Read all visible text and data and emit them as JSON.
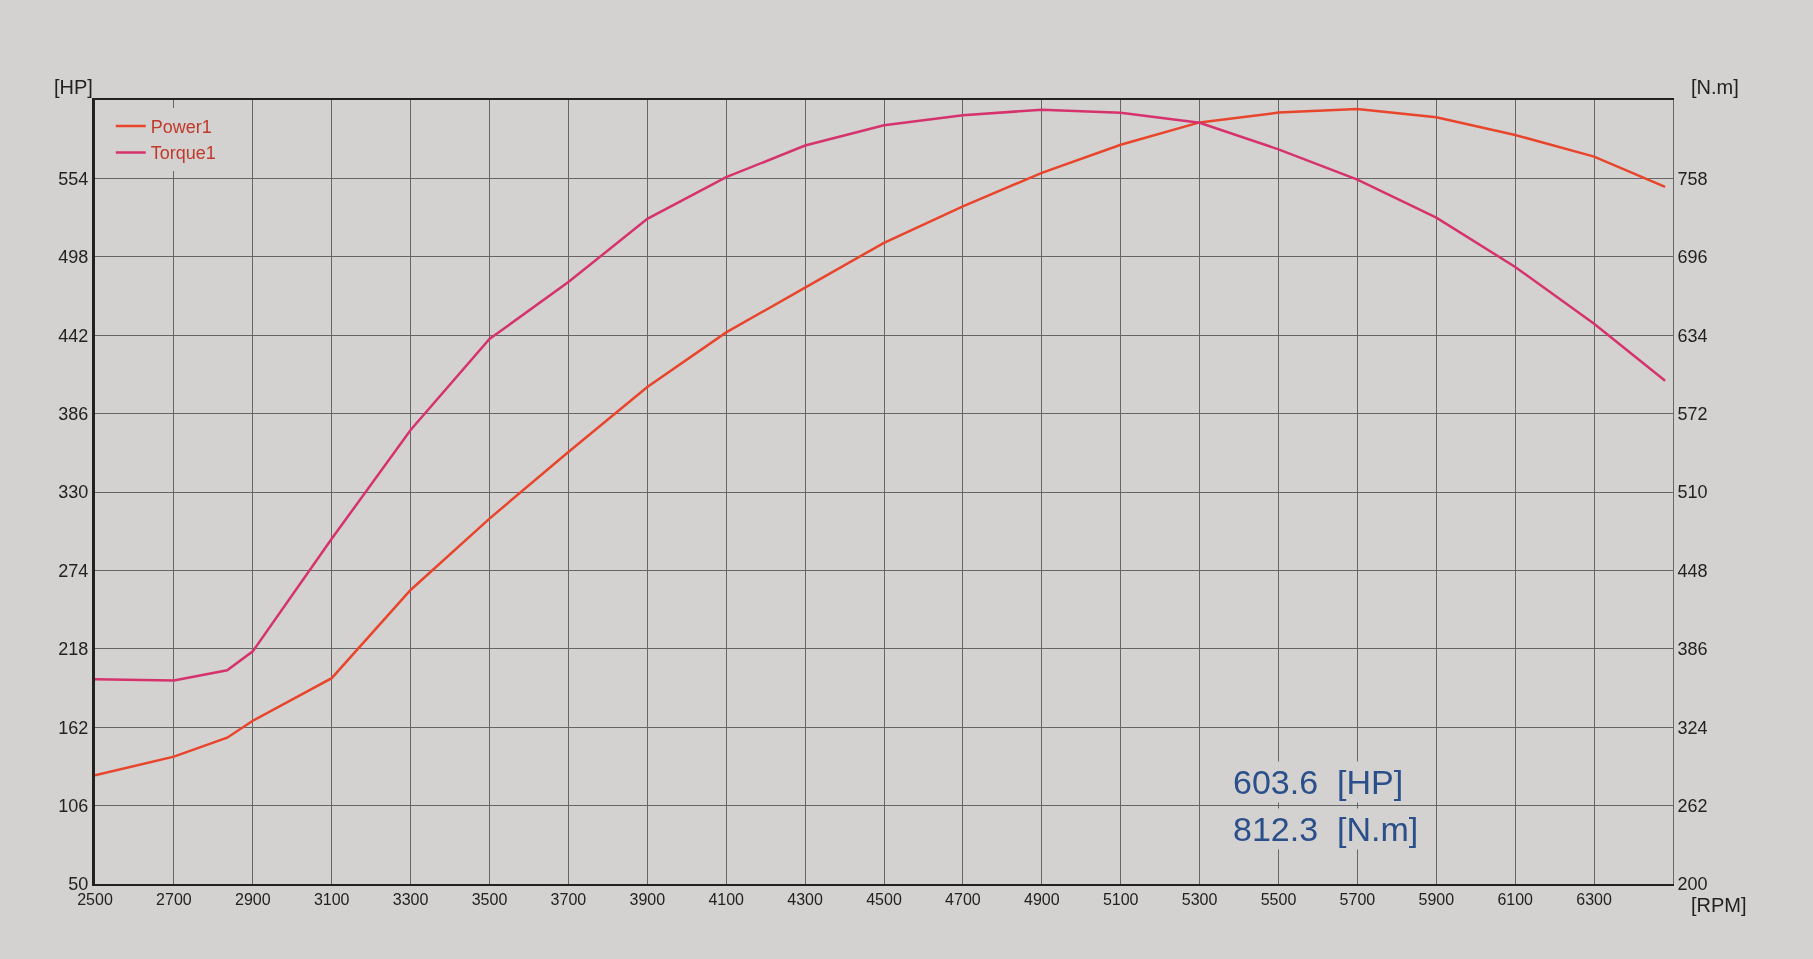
{
  "chart_data": {
    "type": "line",
    "xlabel": "[RPM]",
    "ylabel": "[HP]",
    "y2label": "[N.m]",
    "x": [
      2500,
      2700,
      2835,
      2900,
      3100,
      3300,
      3500,
      3700,
      3900,
      4100,
      4300,
      4500,
      4700,
      4900,
      5100,
      5300,
      5500,
      5700,
      5900,
      6100,
      6300,
      6480
    ],
    "series": [
      {
        "name": "Power1",
        "color": "#e8452c",
        "values": [
          127.6,
          141,
          154.5,
          166.6,
          197,
          260,
          311,
          358.6,
          405,
          444,
          476,
          508,
          534,
          558,
          578,
          594,
          601,
          603.6,
          597.6,
          585,
          569.6,
          548
        ]
      },
      {
        "name": "Torque1",
        "color": "#d6336e",
        "axis": "y2",
        "values": [
          362,
          361,
          369,
          384,
          473,
          559,
          631,
          676,
          726,
          759,
          784,
          800,
          808,
          812.3,
          810,
          802,
          781,
          757,
          727,
          688,
          643,
          598
        ]
      }
    ],
    "xlim": [
      2500,
      6500
    ],
    "xticks": [
      2500,
      2700,
      2900,
      3100,
      3300,
      3500,
      3700,
      3900,
      4100,
      4300,
      4500,
      4700,
      4900,
      5100,
      5300,
      5500,
      5700,
      5900,
      6100,
      6300,
      {
        "value": 6500,
        "label": null
      }
    ],
    "ylim": [
      50,
      610
    ],
    "yticks": [
      50,
      106,
      162,
      218,
      274,
      330,
      386,
      442,
      498,
      554,
      {
        "value": 610,
        "label": null
      }
    ],
    "y2lim": [
      200,
      820
    ],
    "y2ticks": [
      200,
      262,
      324,
      386,
      448,
      510,
      572,
      634,
      696,
      758
    ],
    "grid": true,
    "legend": "top left",
    "line_style": "solid",
    "marker": "none",
    "annotations": [
      "603.6  [HP]",
      "812.3  [N.m]"
    ]
  }
}
